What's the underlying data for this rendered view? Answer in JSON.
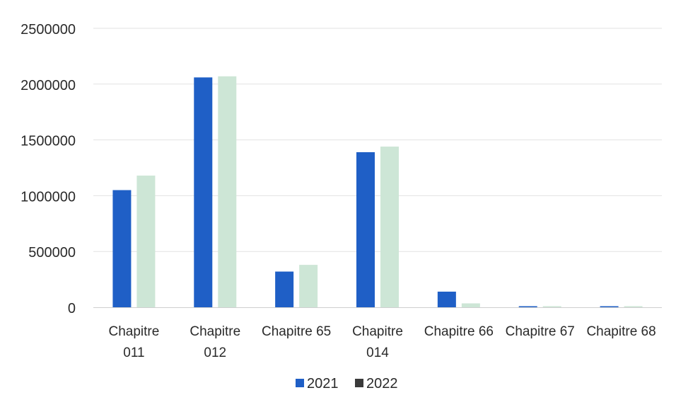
{
  "chart_data": {
    "type": "bar",
    "title": "",
    "xlabel": "",
    "ylabel": "",
    "categories": [
      [
        "Chapitre",
        "011"
      ],
      [
        "Chapitre",
        "012"
      ],
      [
        "Chapitre 65"
      ],
      [
        "Chapitre",
        "014"
      ],
      [
        "Chapitre 66"
      ],
      [
        "Chapitre 67"
      ],
      [
        "Chapitre 68"
      ]
    ],
    "series": [
      {
        "name": "2021",
        "color": "#1f5fc6",
        "values": [
          1050000,
          2060000,
          320000,
          1390000,
          140000,
          5000,
          5000
        ]
      },
      {
        "name": "2022",
        "color": "#cde6d6",
        "values": [
          1180000,
          2070000,
          380000,
          1440000,
          35000,
          3000,
          3000
        ]
      }
    ],
    "ylim": [
      0,
      2500000
    ],
    "yticks": [
      "0",
      "500000",
      "1000000",
      "1500000",
      "2000000",
      "2500000"
    ],
    "grid": true,
    "legend_position": "bottom"
  }
}
